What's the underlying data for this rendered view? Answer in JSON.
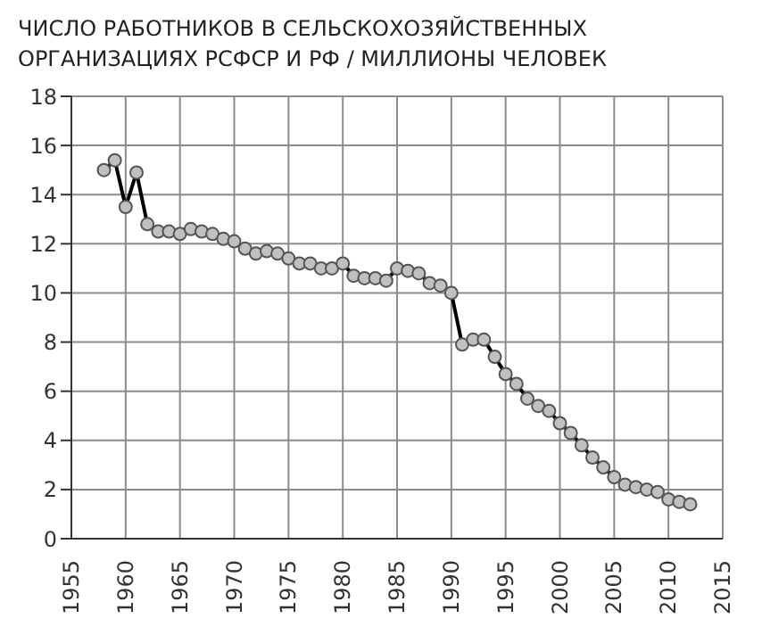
{
  "chart_data": {
    "type": "line",
    "title": "ЧИСЛО РАБОТНИКОВ В СЕЛЬСКОХОЗЯЙСТВЕННЫХ ОРГАНИЗАЦИЯХ РСФСР И РФ / МИЛЛИОНЫ ЧЕЛОВЕК",
    "x": [
      1958,
      1959,
      1960,
      1961,
      1962,
      1963,
      1964,
      1965,
      1966,
      1967,
      1968,
      1969,
      1970,
      1971,
      1972,
      1973,
      1974,
      1975,
      1976,
      1977,
      1978,
      1979,
      1980,
      1981,
      1982,
      1983,
      1984,
      1985,
      1986,
      1987,
      1988,
      1989,
      1990,
      1991,
      1992,
      1993,
      1994,
      1995,
      1996,
      1997,
      1998,
      1999,
      2000,
      2001,
      2002,
      2003,
      2004,
      2005,
      2006,
      2007,
      2008,
      2009,
      2010,
      2011,
      2012
    ],
    "series": [
      {
        "color": "#000000",
        "values": [
          15.0,
          15.4,
          13.5,
          14.9,
          12.8,
          12.5,
          12.5,
          12.4,
          12.6,
          12.5,
          12.4,
          12.2,
          12.1,
          11.8,
          11.6,
          11.7,
          11.6,
          11.4,
          11.2,
          11.2,
          11.0,
          11.0,
          11.2,
          10.7,
          10.6,
          10.6,
          10.5,
          11.0,
          10.9,
          10.8,
          10.4,
          10.3,
          10.0,
          7.9,
          8.1,
          8.1,
          7.4,
          6.7,
          6.3,
          5.7,
          5.4,
          5.2,
          4.7,
          4.3,
          3.8,
          3.3,
          2.9,
          2.5,
          2.2,
          2.1,
          2.0,
          1.9,
          1.6,
          1.5,
          1.4
        ]
      }
    ],
    "xlim": [
      1955,
      2015
    ],
    "xticks": [
      1955,
      1960,
      1965,
      1970,
      1975,
      1980,
      1985,
      1990,
      1995,
      2000,
      2005,
      2010,
      2015
    ],
    "ylim": [
      0,
      18
    ],
    "yticks": [
      0,
      2,
      4,
      6,
      8,
      10,
      12,
      14,
      16,
      18
    ],
    "grid": true,
    "marker": "circle",
    "line_style": "solid",
    "legend": false
  }
}
